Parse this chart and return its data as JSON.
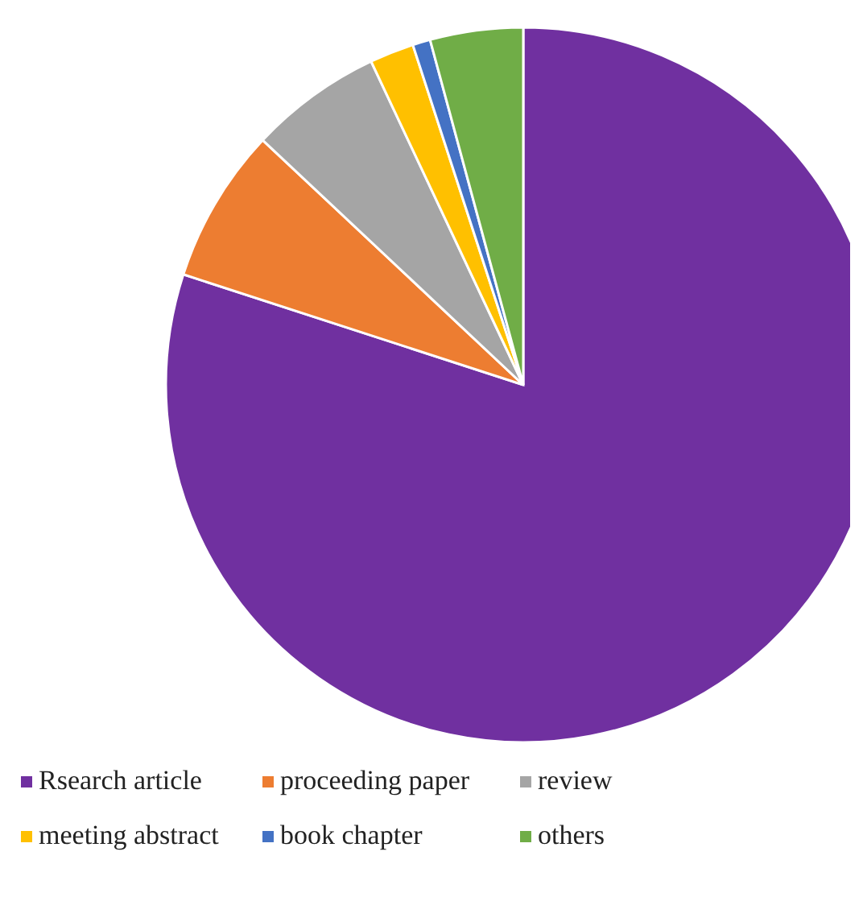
{
  "chart_data": {
    "type": "pie",
    "categories": [
      "Rsearch article",
      "proceeding paper",
      "review",
      "meeting abstract",
      "book chapter",
      "others"
    ],
    "values": [
      80,
      7,
      6,
      2,
      0.8,
      4.2
    ],
    "colors": [
      "#7030a0",
      "#ed7d31",
      "#a5a5a5",
      "#ffc000",
      "#4472c4",
      "#70ad47"
    ],
    "legend": "bottom"
  }
}
